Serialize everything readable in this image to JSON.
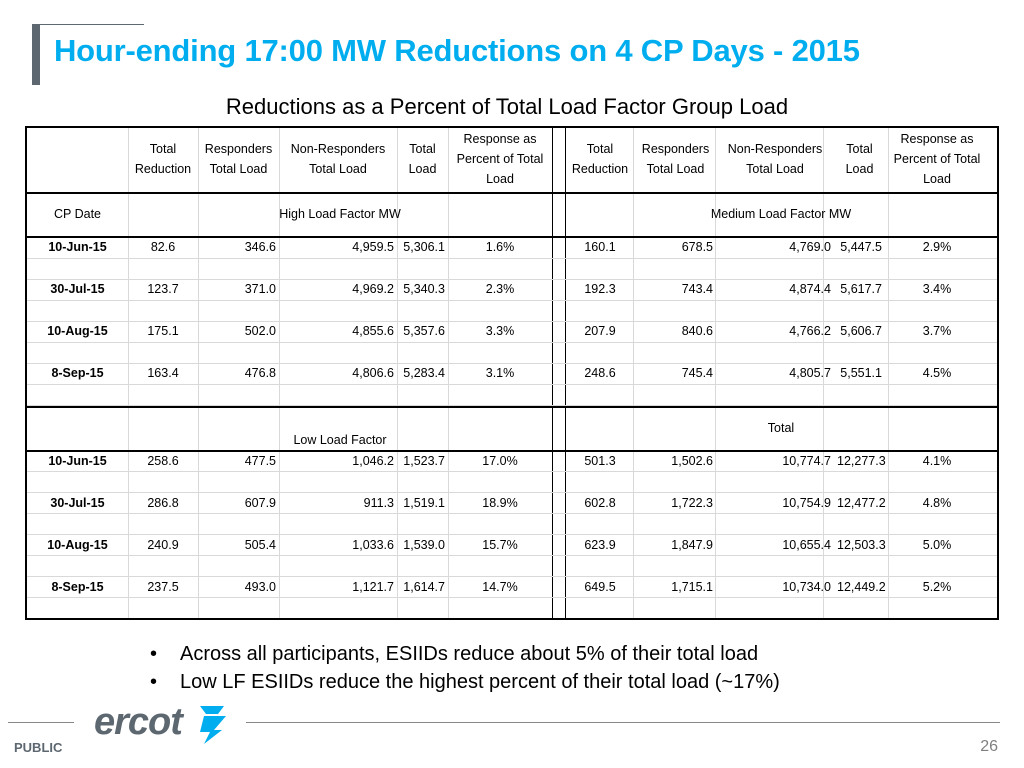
{
  "title": "Hour-ending 17:00 MW Reductions on 4 CP Days - 2015",
  "subtitle": "Reductions as a Percent of Total Load Factor Group Load",
  "table": {
    "col_headers": [
      [
        "Total",
        "Reduction"
      ],
      [
        "Responders",
        "Total Load"
      ],
      [
        "Non-Responders",
        "Total Load"
      ],
      [
        "Total",
        "Load"
      ],
      [
        "Response as",
        "Percent of Total",
        "Load"
      ]
    ],
    "cp_date_label": "CP Date",
    "groups": {
      "high": "High Load Factor MW",
      "medium": "Medium Load Factor MW",
      "low": "Low Load Factor",
      "total": "Total"
    },
    "top_rows": [
      {
        "date": "10-Jun-15",
        "left": [
          "82.6",
          "346.6",
          "4,959.5",
          "5,306.1",
          "1.6%"
        ],
        "right": [
          "160.1",
          "678.5",
          "4,769.0",
          "5,447.5",
          "2.9%"
        ]
      },
      {
        "date": "30-Jul-15",
        "left": [
          "123.7",
          "371.0",
          "4,969.2",
          "5,340.3",
          "2.3%"
        ],
        "right": [
          "192.3",
          "743.4",
          "4,874.4",
          "5,617.7",
          "3.4%"
        ]
      },
      {
        "date": "10-Aug-15",
        "left": [
          "175.1",
          "502.0",
          "4,855.6",
          "5,357.6",
          "3.3%"
        ],
        "right": [
          "207.9",
          "840.6",
          "4,766.2",
          "5,606.7",
          "3.7%"
        ]
      },
      {
        "date": "8-Sep-15",
        "left": [
          "163.4",
          "476.8",
          "4,806.6",
          "5,283.4",
          "3.1%"
        ],
        "right": [
          "248.6",
          "745.4",
          "4,805.7",
          "5,551.1",
          "4.5%"
        ]
      }
    ],
    "bottom_rows": [
      {
        "date": "10-Jun-15",
        "left": [
          "258.6",
          "477.5",
          "1,046.2",
          "1,523.7",
          "17.0%"
        ],
        "right": [
          "501.3",
          "1,502.6",
          "10,774.7",
          "12,277.3",
          "4.1%"
        ]
      },
      {
        "date": "30-Jul-15",
        "left": [
          "286.8",
          "607.9",
          "911.3",
          "1,519.1",
          "18.9%"
        ],
        "right": [
          "602.8",
          "1,722.3",
          "10,754.9",
          "12,477.2",
          "4.8%"
        ]
      },
      {
        "date": "10-Aug-15",
        "left": [
          "240.9",
          "505.4",
          "1,033.6",
          "1,539.0",
          "15.7%"
        ],
        "right": [
          "623.9",
          "1,847.9",
          "10,655.4",
          "12,503.3",
          "5.0%"
        ]
      },
      {
        "date": "8-Sep-15",
        "left": [
          "237.5",
          "493.0",
          "1,121.7",
          "1,614.7",
          "14.7%"
        ],
        "right": [
          "649.5",
          "1,715.1",
          "10,734.0",
          "12,449.2",
          "5.2%"
        ]
      }
    ]
  },
  "bullets": [
    "Across all participants, ESIIDs reduce about 5% of their total load",
    "Low LF ESIIDs reduce the highest percent of their total load (~17%)"
  ],
  "footer": {
    "logo_text": "ercot",
    "classification": "PUBLIC",
    "page_number": "26"
  },
  "colors": {
    "title": "#00aeef",
    "accent_bar": "#5d6770",
    "logo": "#5d6770",
    "logo_mark": "#00aeef"
  }
}
